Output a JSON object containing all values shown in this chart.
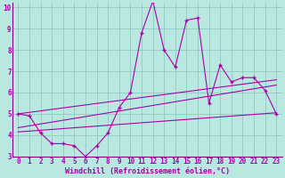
{
  "xlabel": "Windchill (Refroidissement éolien,°C)",
  "bg_color": "#b8e8e0",
  "line_color": "#aa00aa",
  "xlim": [
    -0.5,
    23.5
  ],
  "ylim": [
    3,
    10.2
  ],
  "yticks": [
    3,
    4,
    5,
    6,
    7,
    8,
    9,
    10
  ],
  "xticks": [
    0,
    1,
    2,
    3,
    4,
    5,
    6,
    7,
    8,
    9,
    10,
    11,
    12,
    13,
    14,
    15,
    16,
    17,
    18,
    19,
    20,
    21,
    22,
    23
  ],
  "main_x": [
    0,
    1,
    2,
    3,
    4,
    5,
    6,
    7,
    8,
    9,
    10,
    11,
    12,
    13,
    14,
    15,
    16,
    17,
    18,
    19,
    20,
    21,
    22,
    23
  ],
  "main_y": [
    5.0,
    4.9,
    4.1,
    3.6,
    3.6,
    3.5,
    3.0,
    3.5,
    4.1,
    5.3,
    6.0,
    8.8,
    10.3,
    8.0,
    7.2,
    9.4,
    9.5,
    5.5,
    7.3,
    6.5,
    6.7,
    6.7,
    6.1,
    5.0
  ],
  "line1_x": [
    0,
    23
  ],
  "line1_y": [
    5.0,
    6.6
  ],
  "line2_x": [
    0,
    23
  ],
  "line2_y": [
    4.35,
    6.35
  ],
  "line3_x": [
    0,
    23
  ],
  "line3_y": [
    4.15,
    5.05
  ],
  "tick_color": "#aa00aa",
  "xlabel_fontsize": 6.0,
  "tick_fontsize": 5.5
}
